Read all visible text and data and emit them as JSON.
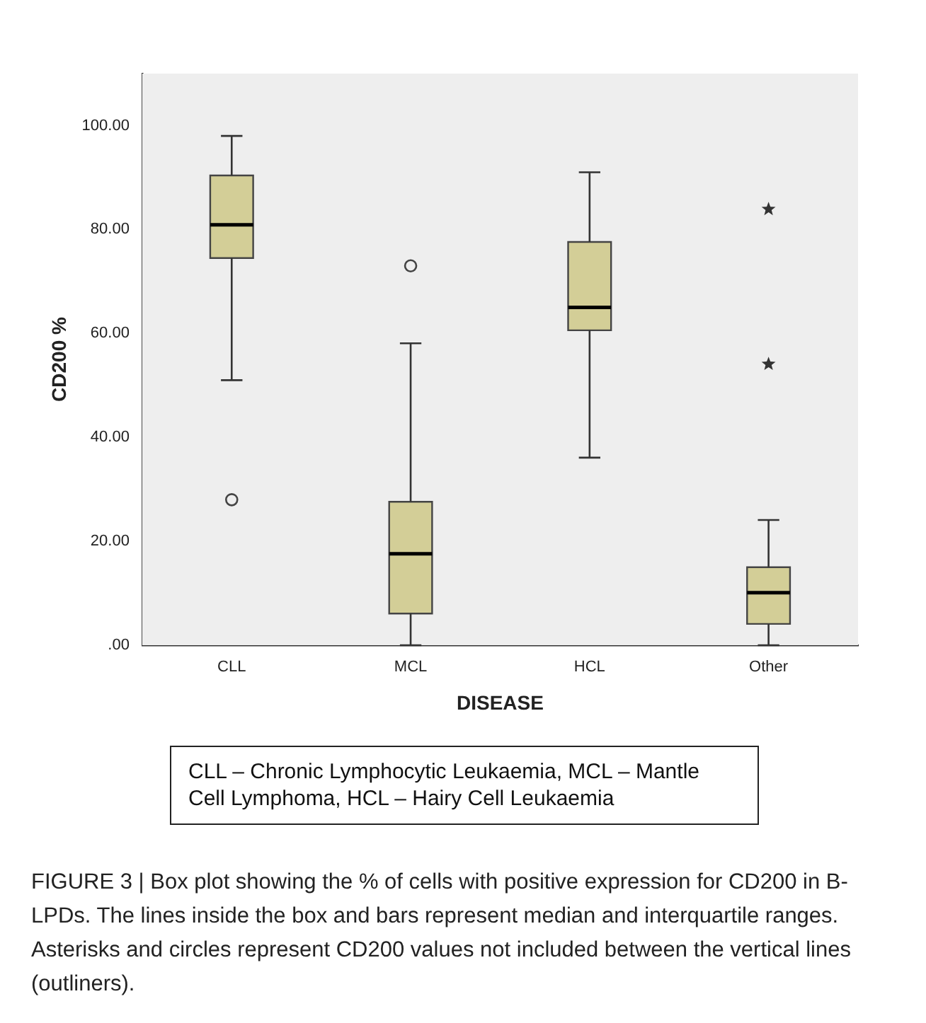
{
  "chart_data": {
    "type": "box",
    "xlabel": "DISEASE",
    "ylabel": "CD200 %",
    "categories": [
      "CLL",
      "MCL",
      "HCL",
      "Other"
    ],
    "ylim": [
      0,
      110
    ],
    "yticks": [
      {
        "value": 0,
        "label": ".00"
      },
      {
        "value": 20,
        "label": "20.00"
      },
      {
        "value": 40,
        "label": "40.00"
      },
      {
        "value": 60,
        "label": "60.00"
      },
      {
        "value": 80,
        "label": "80.00"
      },
      {
        "value": 100,
        "label": "100.00"
      }
    ],
    "grid": false,
    "legend": false,
    "series": [
      {
        "type": "box",
        "color": "#d3ce97",
        "marker": "circle",
        "boxes": [
          {
            "low": 51.0,
            "q1": 74.5,
            "median": 80.9,
            "q3": 90.4,
            "high": 98.0,
            "outliers": [
              28.0
            ]
          },
          {
            "low": 0,
            "q1": 6.1,
            "median": 17.6,
            "q3": 27.6,
            "high": 58.1,
            "outliers": [
              73.0
            ]
          },
          {
            "low": 36.1,
            "q1": 60.6,
            "median": 65.0,
            "q3": 77.6,
            "high": 91.0
          },
          {
            "low": 0,
            "q1": 4.1,
            "median": 10.1,
            "q3": 15.0,
            "high": 24.1
          }
        ]
      },
      {
        "type": "scatter",
        "color": "#333333",
        "marker": "star",
        "x": [
          "Other",
          "Other"
        ],
        "values": [
          83.9,
          54.1
        ]
      }
    ],
    "annotations": [
      "CLL – Chronic Lymphocytic Leukaemia, MCL – Mantle Cell Lymphoma, HCL – Hairy Cell Leukaemia",
      "FIGURE 3 | Box plot showing the % of cells with positive expression for CD200 in B-LPDs. The lines inside the box and bars represent median and interquartile ranges. Asterisks and circles represent CD200 values not included between the vertical lines (outliners)."
    ]
  }
}
